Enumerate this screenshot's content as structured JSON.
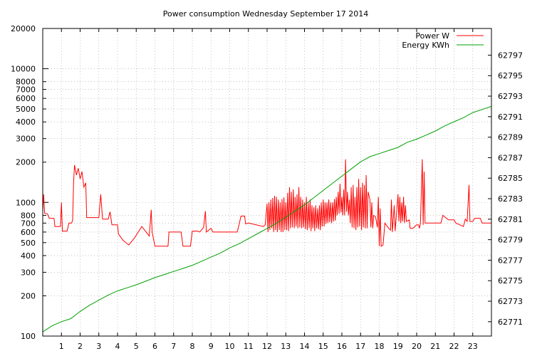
{
  "chart_data": {
    "type": "line",
    "title": "Power consumption Wednesday September 17 2014",
    "xlabel": "",
    "ylabel": "",
    "y2label": "",
    "xlim": [
      0,
      24
    ],
    "ylim": [
      100,
      20000
    ],
    "y_scale": "log",
    "y2lim": [
      62769.6,
      62799.6
    ],
    "grid": true,
    "legend_position": "top-right",
    "x_ticks": [
      1,
      2,
      3,
      4,
      5,
      6,
      7,
      8,
      9,
      10,
      11,
      12,
      13,
      14,
      15,
      16,
      17,
      18,
      19,
      20,
      21,
      22,
      23
    ],
    "y_ticks": [
      100,
      200,
      300,
      400,
      500,
      600,
      700,
      800,
      1000,
      2000,
      3000,
      4000,
      5000,
      6000,
      7000,
      8000,
      10000,
      20000
    ],
    "y2_ticks": [
      62771,
      62773,
      62775,
      62777,
      62779,
      62781,
      62783,
      62785,
      62787,
      62789,
      62791,
      62793,
      62795,
      62797
    ],
    "series": [
      {
        "name": "Power W",
        "color": "#ff0000",
        "axis": "left",
        "points": [
          [
            0.0,
            860
          ],
          [
            0.05,
            1150
          ],
          [
            0.1,
            830
          ],
          [
            0.25,
            820
          ],
          [
            0.35,
            760
          ],
          [
            0.6,
            760
          ],
          [
            0.65,
            660
          ],
          [
            0.95,
            660
          ],
          [
            1.0,
            1000
          ],
          [
            1.05,
            610
          ],
          [
            1.3,
            610
          ],
          [
            1.4,
            700
          ],
          [
            1.55,
            700
          ],
          [
            1.6,
            740
          ],
          [
            1.65,
            1400
          ],
          [
            1.7,
            1900
          ],
          [
            1.8,
            1600
          ],
          [
            1.9,
            1800
          ],
          [
            2.0,
            1500
          ],
          [
            2.1,
            1700
          ],
          [
            2.2,
            1300
          ],
          [
            2.3,
            1400
          ],
          [
            2.35,
            770
          ],
          [
            3.0,
            770
          ],
          [
            3.1,
            1150
          ],
          [
            3.2,
            750
          ],
          [
            3.5,
            750
          ],
          [
            3.6,
            850
          ],
          [
            3.7,
            680
          ],
          [
            4.0,
            680
          ],
          [
            4.05,
            580
          ],
          [
            4.3,
            520
          ],
          [
            4.6,
            480
          ],
          [
            4.9,
            540
          ],
          [
            5.3,
            660
          ],
          [
            5.7,
            560
          ],
          [
            5.8,
            880
          ],
          [
            5.85,
            600
          ],
          [
            6.0,
            470
          ],
          [
            6.7,
            470
          ],
          [
            6.75,
            600
          ],
          [
            7.4,
            600
          ],
          [
            7.5,
            470
          ],
          [
            7.9,
            470
          ],
          [
            8.0,
            610
          ],
          [
            8.3,
            610
          ],
          [
            8.4,
            600
          ],
          [
            8.6,
            650
          ],
          [
            8.7,
            860
          ],
          [
            8.75,
            600
          ],
          [
            9.0,
            640
          ],
          [
            9.1,
            600
          ],
          [
            10.4,
            600
          ],
          [
            10.5,
            680
          ],
          [
            10.6,
            790
          ],
          [
            10.8,
            790
          ],
          [
            10.85,
            690
          ],
          [
            11.0,
            700
          ],
          [
            11.8,
            660
          ],
          [
            11.9,
            680
          ],
          [
            12.0,
            980
          ],
          [
            12.05,
            600
          ],
          [
            12.1,
            1000
          ],
          [
            12.15,
            620
          ],
          [
            12.2,
            1050
          ],
          [
            12.25,
            640
          ],
          [
            12.3,
            1080
          ],
          [
            12.35,
            600
          ],
          [
            12.4,
            1120
          ],
          [
            12.45,
            620
          ],
          [
            12.5,
            1100
          ],
          [
            12.55,
            600
          ],
          [
            12.6,
            1050
          ],
          [
            12.65,
            620
          ],
          [
            12.7,
            1000
          ],
          [
            12.75,
            600
          ],
          [
            12.8,
            1060
          ],
          [
            12.85,
            600
          ],
          [
            12.9,
            1090
          ],
          [
            12.95,
            620
          ],
          [
            13.0,
            1000
          ],
          [
            13.05,
            620
          ],
          [
            13.1,
            1180
          ],
          [
            13.15,
            610
          ],
          [
            13.2,
            1300
          ],
          [
            13.25,
            640
          ],
          [
            13.3,
            1200
          ],
          [
            13.35,
            650
          ],
          [
            13.4,
            1250
          ],
          [
            13.45,
            640
          ],
          [
            13.5,
            1100
          ],
          [
            13.55,
            660
          ],
          [
            13.6,
            1150
          ],
          [
            13.65,
            640
          ],
          [
            13.7,
            1300
          ],
          [
            13.75,
            650
          ],
          [
            13.8,
            1100
          ],
          [
            13.85,
            640
          ],
          [
            13.9,
            1050
          ],
          [
            13.95,
            650
          ],
          [
            14.0,
            1000
          ],
          [
            14.05,
            630
          ],
          [
            14.1,
            1100
          ],
          [
            14.15,
            620
          ],
          [
            14.2,
            1000
          ],
          [
            14.25,
            640
          ],
          [
            14.3,
            1050
          ],
          [
            14.35,
            610
          ],
          [
            14.4,
            950
          ],
          [
            14.45,
            640
          ],
          [
            14.5,
            920
          ],
          [
            14.55,
            610
          ],
          [
            14.6,
            950
          ],
          [
            14.65,
            640
          ],
          [
            14.7,
            900
          ],
          [
            14.75,
            630
          ],
          [
            14.8,
            950
          ],
          [
            14.85,
            620
          ],
          [
            14.9,
            1000
          ],
          [
            14.95,
            660
          ],
          [
            15.0,
            1050
          ],
          [
            15.05,
            660
          ],
          [
            15.1,
            1000
          ],
          [
            15.15,
            690
          ],
          [
            15.2,
            1000
          ],
          [
            15.25,
            700
          ],
          [
            15.3,
            1050
          ],
          [
            15.35,
            710
          ],
          [
            15.4,
            1000
          ],
          [
            15.45,
            700
          ],
          [
            15.5,
            1000
          ],
          [
            15.55,
            720
          ],
          [
            15.6,
            1060
          ],
          [
            15.65,
            730
          ],
          [
            15.7,
            1100
          ],
          [
            15.75,
            800
          ],
          [
            15.8,
            1200
          ],
          [
            15.85,
            820
          ],
          [
            15.9,
            1380
          ],
          [
            15.95,
            840
          ],
          [
            16.0,
            1100
          ],
          [
            16.05,
            800
          ],
          [
            16.1,
            1250
          ],
          [
            16.15,
            800
          ],
          [
            16.2,
            2100
          ],
          [
            16.25,
            850
          ],
          [
            16.3,
            1200
          ],
          [
            16.35,
            800
          ],
          [
            16.4,
            1050
          ],
          [
            16.45,
            700
          ],
          [
            16.5,
            1300
          ],
          [
            16.55,
            650
          ],
          [
            16.6,
            1350
          ],
          [
            16.65,
            640
          ],
          [
            16.7,
            1100
          ],
          [
            16.75,
            620
          ],
          [
            16.8,
            1300
          ],
          [
            16.85,
            650
          ],
          [
            16.9,
            1500
          ],
          [
            16.95,
            660
          ],
          [
            17.0,
            1300
          ],
          [
            17.05,
            620
          ],
          [
            17.1,
            1400
          ],
          [
            17.15,
            650
          ],
          [
            17.2,
            1350
          ],
          [
            17.25,
            640
          ],
          [
            17.3,
            1600
          ],
          [
            17.35,
            640
          ],
          [
            17.4,
            1200
          ],
          [
            17.5,
            1050
          ],
          [
            17.55,
            650
          ],
          [
            17.6,
            1000
          ],
          [
            17.65,
            640
          ],
          [
            17.7,
            800
          ],
          [
            17.8,
            780
          ],
          [
            17.9,
            650
          ],
          [
            17.95,
            1100
          ],
          [
            18.0,
            470
          ],
          [
            18.05,
            900
          ],
          [
            18.1,
            470
          ],
          [
            18.2,
            480
          ],
          [
            18.3,
            700
          ],
          [
            18.5,
            640
          ],
          [
            18.6,
            620
          ],
          [
            18.65,
            1050
          ],
          [
            18.7,
            600
          ],
          [
            18.8,
            950
          ],
          [
            18.85,
            610
          ],
          [
            19.0,
            1150
          ],
          [
            19.05,
            720
          ],
          [
            19.1,
            1100
          ],
          [
            19.15,
            700
          ],
          [
            19.2,
            1000
          ],
          [
            19.25,
            720
          ],
          [
            19.3,
            1100
          ],
          [
            19.35,
            700
          ],
          [
            19.4,
            950
          ],
          [
            19.45,
            720
          ],
          [
            19.6,
            740
          ],
          [
            19.65,
            640
          ],
          [
            19.8,
            640
          ],
          [
            20.0,
            680
          ],
          [
            20.1,
            680
          ],
          [
            20.15,
            640
          ],
          [
            20.2,
            700
          ],
          [
            20.3,
            2100
          ],
          [
            20.35,
            680
          ],
          [
            20.4,
            1700
          ],
          [
            20.45,
            700
          ],
          [
            21.3,
            700
          ],
          [
            21.4,
            800
          ],
          [
            21.7,
            740
          ],
          [
            21.8,
            740
          ],
          [
            22.0,
            740
          ],
          [
            22.1,
            700
          ],
          [
            22.3,
            680
          ],
          [
            22.5,
            660
          ],
          [
            22.6,
            750
          ],
          [
            22.7,
            720
          ],
          [
            22.8,
            1350
          ],
          [
            22.85,
            720
          ],
          [
            23.0,
            720
          ],
          [
            23.1,
            760
          ],
          [
            23.4,
            760
          ],
          [
            23.5,
            700
          ],
          [
            24.0,
            700
          ]
        ]
      },
      {
        "name": "Energy KWh",
        "color": "#00a000",
        "axis": "right",
        "points": [
          [
            0.0,
            62770.0
          ],
          [
            0.5,
            62770.6
          ],
          [
            1.0,
            62771.0
          ],
          [
            1.5,
            62771.3
          ],
          [
            2.0,
            62772.0
          ],
          [
            2.5,
            62772.6
          ],
          [
            3.0,
            62773.1
          ],
          [
            3.5,
            62773.6
          ],
          [
            4.0,
            62774.0
          ],
          [
            4.5,
            62774.3
          ],
          [
            5.0,
            62774.6
          ],
          [
            5.5,
            62774.95
          ],
          [
            6.0,
            62775.3
          ],
          [
            6.5,
            62775.6
          ],
          [
            7.0,
            62775.9
          ],
          [
            7.5,
            62776.2
          ],
          [
            8.0,
            62776.5
          ],
          [
            8.5,
            62776.9
          ],
          [
            9.0,
            62777.3
          ],
          [
            9.5,
            62777.7
          ],
          [
            10.0,
            62778.2
          ],
          [
            10.5,
            62778.6
          ],
          [
            11.0,
            62779.1
          ],
          [
            11.5,
            62779.6
          ],
          [
            12.0,
            62780.1
          ],
          [
            12.5,
            62780.6
          ],
          [
            13.0,
            62781.2
          ],
          [
            13.5,
            62781.8
          ],
          [
            14.0,
            62782.4
          ],
          [
            14.5,
            62783.1
          ],
          [
            15.0,
            62783.8
          ],
          [
            15.5,
            62784.5
          ],
          [
            16.0,
            62785.2
          ],
          [
            16.5,
            62785.9
          ],
          [
            17.0,
            62786.6
          ],
          [
            17.5,
            62787.1
          ],
          [
            18.0,
            62787.4
          ],
          [
            18.5,
            62787.7
          ],
          [
            19.0,
            62788.0
          ],
          [
            19.5,
            62788.5
          ],
          [
            20.0,
            62788.8
          ],
          [
            20.5,
            62789.2
          ],
          [
            21.0,
            62789.6
          ],
          [
            21.5,
            62790.1
          ],
          [
            22.0,
            62790.5
          ],
          [
            22.5,
            62790.9
          ],
          [
            23.0,
            62791.4
          ],
          [
            23.5,
            62791.7
          ],
          [
            24.0,
            62792.0
          ]
        ]
      }
    ]
  }
}
